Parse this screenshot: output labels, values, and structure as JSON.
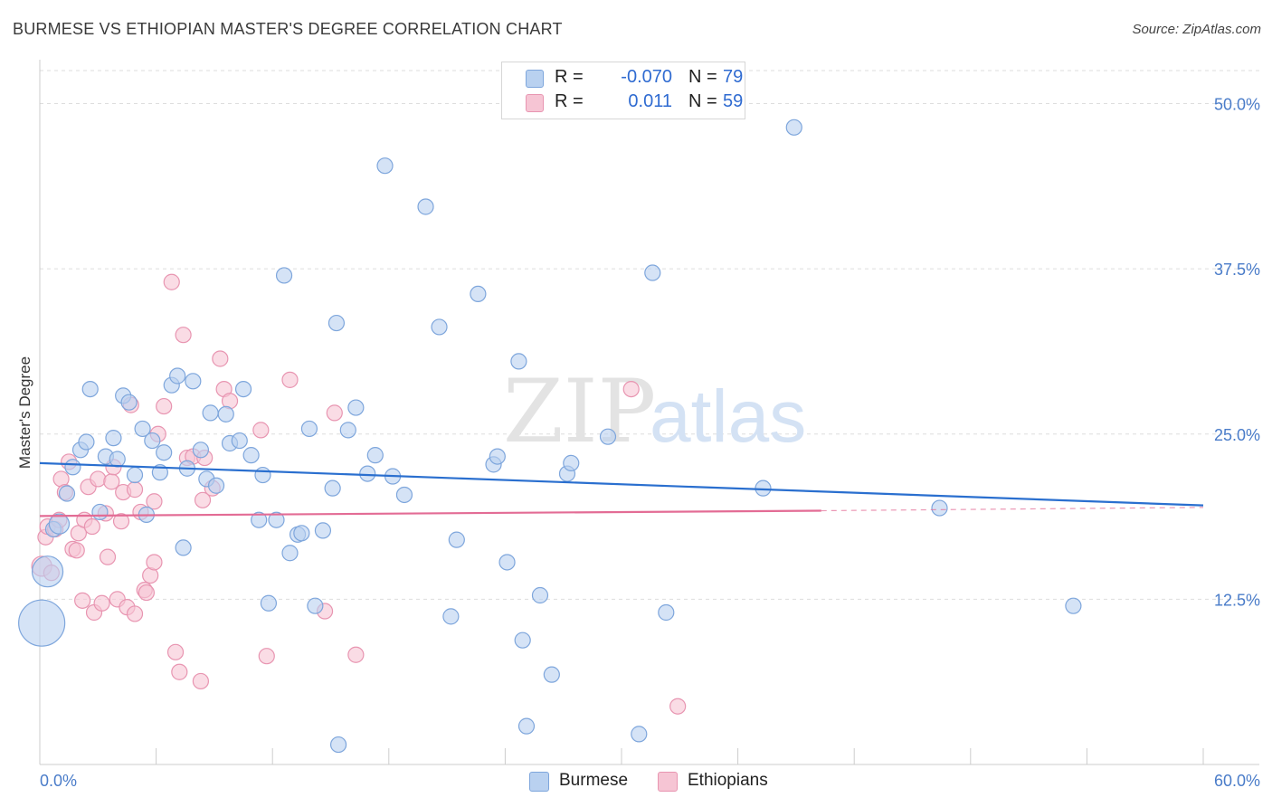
{
  "title": "BURMESE VS ETHIOPIAN MASTER'S DEGREE CORRELATION CHART",
  "source": "Source: ZipAtlas.com",
  "watermark": {
    "zip": "ZIP",
    "atlas": "atlas"
  },
  "legend": {
    "rows": [
      {
        "r_label": "R =",
        "r_value": "-0.070",
        "n_label": "N =",
        "n_value": "79"
      },
      {
        "r_label": "R =",
        "r_value": "0.011",
        "n_label": "N =",
        "n_value": "59"
      }
    ]
  },
  "bottom_legend": [
    "Burmese",
    "Ethiopians"
  ],
  "colors": {
    "burmese_fill": "#b9d1f0",
    "burmese_stroke": "#7ea6dc",
    "burmese_line": "#2a6fcf",
    "ethiopian_fill": "#f6c5d4",
    "ethiopian_stroke": "#e895b1",
    "ethiopian_line": "#e36c95",
    "axis_text": "#4a7cc9",
    "grid": "#dddddd"
  },
  "chart_data": {
    "type": "scatter",
    "title": "BURMESE VS ETHIOPIAN MASTER'S DEGREE CORRELATION CHART",
    "xlabel": "",
    "ylabel": "Master's Degree",
    "xlim": [
      0,
      60
    ],
    "ylim": [
      0,
      52.5
    ],
    "x_tick_labels": [
      {
        "value": 0,
        "label": "0.0%"
      },
      {
        "value": 60,
        "label": "60.0%"
      }
    ],
    "y_tick_labels": [
      {
        "value": 12.5,
        "label": "12.5%"
      },
      {
        "value": 25.0,
        "label": "25.0%"
      },
      {
        "value": 37.5,
        "label": "37.5%"
      },
      {
        "value": 50.0,
        "label": "50.0%"
      }
    ],
    "series": [
      {
        "name": "Burmese",
        "r": -0.07,
        "n": 79,
        "trend": {
          "x0": 0,
          "y0": 22.8,
          "x1": 60,
          "y1": 19.6
        },
        "points": [
          {
            "x": 0.1,
            "y": 10.7,
            "s": 3
          },
          {
            "x": 0.4,
            "y": 14.6,
            "s": 2
          },
          {
            "x": 0.7,
            "y": 17.8
          },
          {
            "x": 1.0,
            "y": 18.2,
            "s": 1.3
          },
          {
            "x": 1.4,
            "y": 20.5
          },
          {
            "x": 1.7,
            "y": 22.5
          },
          {
            "x": 2.1,
            "y": 23.8
          },
          {
            "x": 2.4,
            "y": 24.4
          },
          {
            "x": 2.6,
            "y": 28.4
          },
          {
            "x": 3.1,
            "y": 19.1
          },
          {
            "x": 3.4,
            "y": 23.3
          },
          {
            "x": 3.8,
            "y": 24.7
          },
          {
            "x": 4.0,
            "y": 23.1
          },
          {
            "x": 4.3,
            "y": 27.9
          },
          {
            "x": 4.6,
            "y": 27.4
          },
          {
            "x": 4.9,
            "y": 21.9
          },
          {
            "x": 5.3,
            "y": 25.4
          },
          {
            "x": 5.5,
            "y": 18.9
          },
          {
            "x": 5.8,
            "y": 24.5
          },
          {
            "x": 6.2,
            "y": 22.1
          },
          {
            "x": 6.4,
            "y": 23.6
          },
          {
            "x": 6.8,
            "y": 28.7
          },
          {
            "x": 7.1,
            "y": 29.4
          },
          {
            "x": 7.4,
            "y": 16.4
          },
          {
            "x": 7.6,
            "y": 22.4
          },
          {
            "x": 7.9,
            "y": 29.0
          },
          {
            "x": 8.3,
            "y": 23.8
          },
          {
            "x": 8.6,
            "y": 21.6
          },
          {
            "x": 8.8,
            "y": 26.6
          },
          {
            "x": 9.1,
            "y": 21.1
          },
          {
            "x": 9.6,
            "y": 26.5
          },
          {
            "x": 9.8,
            "y": 24.3
          },
          {
            "x": 10.3,
            "y": 24.5
          },
          {
            "x": 10.5,
            "y": 28.4
          },
          {
            "x": 10.9,
            "y": 23.4
          },
          {
            "x": 11.3,
            "y": 18.5
          },
          {
            "x": 11.5,
            "y": 21.9
          },
          {
            "x": 11.8,
            "y": 12.2
          },
          {
            "x": 12.2,
            "y": 18.5
          },
          {
            "x": 12.6,
            "y": 37.0
          },
          {
            "x": 12.9,
            "y": 16.0
          },
          {
            "x": 13.3,
            "y": 17.4
          },
          {
            "x": 13.5,
            "y": 17.5
          },
          {
            "x": 13.9,
            "y": 25.4
          },
          {
            "x": 14.2,
            "y": 12.0
          },
          {
            "x": 14.6,
            "y": 17.7
          },
          {
            "x": 15.1,
            "y": 20.9
          },
          {
            "x": 15.3,
            "y": 33.4
          },
          {
            "x": 15.4,
            "y": 1.5
          },
          {
            "x": 15.9,
            "y": 25.3
          },
          {
            "x": 16.3,
            "y": 27.0
          },
          {
            "x": 16.9,
            "y": 22.0
          },
          {
            "x": 17.3,
            "y": 23.4
          },
          {
            "x": 17.8,
            "y": 45.3
          },
          {
            "x": 18.2,
            "y": 21.8
          },
          {
            "x": 18.8,
            "y": 20.4
          },
          {
            "x": 19.9,
            "y": 42.2
          },
          {
            "x": 20.6,
            "y": 33.1
          },
          {
            "x": 21.2,
            "y": 11.2
          },
          {
            "x": 21.5,
            "y": 17.0
          },
          {
            "x": 22.6,
            "y": 35.6
          },
          {
            "x": 23.4,
            "y": 22.7
          },
          {
            "x": 23.6,
            "y": 23.3
          },
          {
            "x": 24.1,
            "y": 15.3
          },
          {
            "x": 24.7,
            "y": 30.5
          },
          {
            "x": 24.9,
            "y": 9.4
          },
          {
            "x": 25.1,
            "y": 2.9
          },
          {
            "x": 25.8,
            "y": 12.8
          },
          {
            "x": 26.4,
            "y": 6.8
          },
          {
            "x": 27.2,
            "y": 22.0
          },
          {
            "x": 27.4,
            "y": 22.8
          },
          {
            "x": 29.3,
            "y": 24.8
          },
          {
            "x": 30.9,
            "y": 2.3
          },
          {
            "x": 31.6,
            "y": 37.2
          },
          {
            "x": 32.3,
            "y": 11.5
          },
          {
            "x": 37.3,
            "y": 20.9
          },
          {
            "x": 38.9,
            "y": 48.2
          },
          {
            "x": 46.4,
            "y": 19.4
          },
          {
            "x": 53.3,
            "y": 12.0
          }
        ]
      },
      {
        "name": "Ethiopians",
        "r": 0.011,
        "n": 59,
        "trend": {
          "x0": 0,
          "y0": 18.8,
          "x1": 40.3,
          "y1": 19.2
        },
        "trend_extension": {
          "x0": 40.3,
          "y0": 19.2,
          "x1": 60,
          "y1": 19.45
        },
        "points": [
          {
            "x": 0.1,
            "y": 15.0,
            "s": 1.3
          },
          {
            "x": 0.3,
            "y": 17.2
          },
          {
            "x": 0.4,
            "y": 18.0
          },
          {
            "x": 0.6,
            "y": 14.5
          },
          {
            "x": 0.8,
            "y": 17.8
          },
          {
            "x": 1.0,
            "y": 18.5
          },
          {
            "x": 1.1,
            "y": 21.6
          },
          {
            "x": 1.3,
            "y": 20.6
          },
          {
            "x": 1.5,
            "y": 22.9
          },
          {
            "x": 1.7,
            "y": 16.3
          },
          {
            "x": 1.9,
            "y": 16.2
          },
          {
            "x": 2.0,
            "y": 17.5
          },
          {
            "x": 2.2,
            "y": 12.4
          },
          {
            "x": 2.3,
            "y": 18.5
          },
          {
            "x": 2.5,
            "y": 21.0
          },
          {
            "x": 2.7,
            "y": 18.0
          },
          {
            "x": 2.8,
            "y": 11.5
          },
          {
            "x": 3.0,
            "y": 21.6
          },
          {
            "x": 3.2,
            "y": 12.2
          },
          {
            "x": 3.4,
            "y": 19.0
          },
          {
            "x": 3.5,
            "y": 15.7
          },
          {
            "x": 3.7,
            "y": 21.4
          },
          {
            "x": 3.8,
            "y": 22.5
          },
          {
            "x": 4.0,
            "y": 12.5
          },
          {
            "x": 4.2,
            "y": 18.4
          },
          {
            "x": 4.3,
            "y": 20.6
          },
          {
            "x": 4.5,
            "y": 11.9
          },
          {
            "x": 4.7,
            "y": 27.2
          },
          {
            "x": 4.9,
            "y": 11.4
          },
          {
            "x": 4.9,
            "y": 20.8
          },
          {
            "x": 5.2,
            "y": 19.1
          },
          {
            "x": 5.4,
            "y": 13.2
          },
          {
            "x": 5.5,
            "y": 13.0
          },
          {
            "x": 5.7,
            "y": 14.3
          },
          {
            "x": 5.9,
            "y": 15.3
          },
          {
            "x": 5.9,
            "y": 19.9
          },
          {
            "x": 6.1,
            "y": 25.0
          },
          {
            "x": 6.4,
            "y": 27.1
          },
          {
            "x": 6.8,
            "y": 36.5
          },
          {
            "x": 7.0,
            "y": 8.5
          },
          {
            "x": 7.2,
            "y": 7.0
          },
          {
            "x": 7.4,
            "y": 32.5
          },
          {
            "x": 7.6,
            "y": 23.2
          },
          {
            "x": 7.9,
            "y": 23.3
          },
          {
            "x": 8.3,
            "y": 6.3
          },
          {
            "x": 8.4,
            "y": 20.0
          },
          {
            "x": 8.5,
            "y": 23.2
          },
          {
            "x": 8.9,
            "y": 20.9
          },
          {
            "x": 9.3,
            "y": 30.7
          },
          {
            "x": 9.5,
            "y": 28.4
          },
          {
            "x": 9.8,
            "y": 27.5
          },
          {
            "x": 11.4,
            "y": 25.3
          },
          {
            "x": 11.7,
            "y": 8.2
          },
          {
            "x": 12.9,
            "y": 29.1
          },
          {
            "x": 14.7,
            "y": 11.6
          },
          {
            "x": 15.2,
            "y": 26.6
          },
          {
            "x": 16.3,
            "y": 8.3
          },
          {
            "x": 30.5,
            "y": 28.4
          },
          {
            "x": 32.9,
            "y": 4.4
          }
        ]
      }
    ]
  }
}
